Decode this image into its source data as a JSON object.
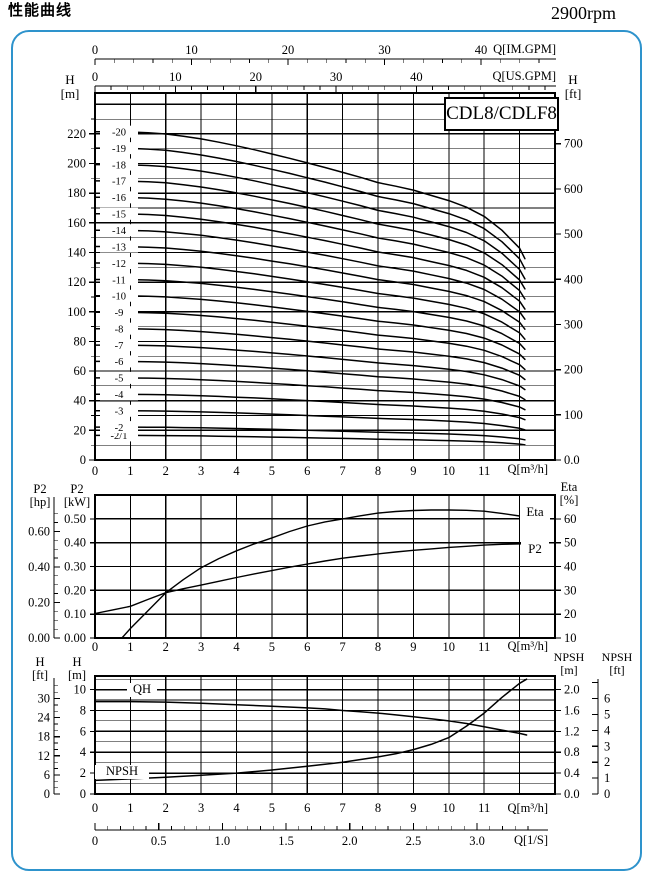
{
  "header": {
    "title": "性能曲线",
    "rpm": "2900rpm"
  },
  "frame_color": "#2e93cc",
  "chart_data": [
    {
      "id": "head-curves",
      "type": "line",
      "title": "CDL8/CDLF8",
      "xlabel": "Q[m³/h]",
      "xlim": [
        0,
        13
      ],
      "x_tick_labels": [
        "0",
        "1",
        "2",
        "3",
        "4",
        "5",
        "6",
        "7",
        "8",
        "9",
        "10",
        "11"
      ],
      "ylabel_left": "H\n[m]",
      "ylim_left": [
        0,
        247
      ],
      "y_ticks_left": [
        "0",
        "20",
        "40",
        "60",
        "80",
        "100",
        "120",
        "140",
        "160",
        "180",
        "200",
        "220"
      ],
      "grid_minor_step_m": 10,
      "ylabel_right": "H\n[ft]",
      "y_ticks_right_ft": [
        "0.0",
        "100",
        "200",
        "300",
        "400",
        "500",
        "600",
        "700"
      ],
      "top_axis_im": {
        "label": "Q[IM.GPM]",
        "ticks": [
          "0",
          "10",
          "20",
          "30",
          "40"
        ],
        "minor_step": 2,
        "m3h_per_unit": 0.27276
      },
      "top_axis_us": {
        "label": "Q[US.GPM]",
        "ticks": [
          "0",
          "10",
          "20",
          "30",
          "40"
        ],
        "minor_step": 2,
        "m3h_per_unit": 0.22712
      },
      "profile_q": [
        0,
        0.5,
        1,
        1.5,
        2,
        2.5,
        3,
        3.5,
        4,
        4.5,
        5,
        5.5,
        6,
        6.5,
        7,
        7.5,
        8,
        8.5,
        9,
        9.5,
        10,
        10.5,
        11,
        11.5,
        12,
        12.15
      ],
      "profile_f": [
        1.0,
        1.0,
        0.999,
        0.997,
        0.993,
        0.986,
        0.978,
        0.968,
        0.957,
        0.945,
        0.932,
        0.919,
        0.905,
        0.891,
        0.876,
        0.861,
        0.845,
        0.834,
        0.822,
        0.806,
        0.79,
        0.77,
        0.742,
        0.7,
        0.645,
        0.613
      ],
      "series": [
        {
          "label": "-2/1",
          "h0_m": 16.6
        },
        {
          "label": "-2",
          "h0_m": 22.2
        },
        {
          "label": "-3",
          "h0_m": 33.2
        },
        {
          "label": "-4",
          "h0_m": 44.3
        },
        {
          "label": "-5",
          "h0_m": 55.4
        },
        {
          "label": "-6",
          "h0_m": 66.5
        },
        {
          "label": "-7",
          "h0_m": 77.5
        },
        {
          "label": "-8",
          "h0_m": 88.6
        },
        {
          "label": "-9",
          "h0_m": 99.7
        },
        {
          "label": "-10",
          "h0_m": 110.8
        },
        {
          "label": "-11",
          "h0_m": 121.8
        },
        {
          "label": "-12",
          "h0_m": 132.9
        },
        {
          "label": "-13",
          "h0_m": 144.0
        },
        {
          "label": "-14",
          "h0_m": 155.0
        },
        {
          "label": "-15",
          "h0_m": 166.1
        },
        {
          "label": "-16",
          "h0_m": 177.2
        },
        {
          "label": "-17",
          "h0_m": 188.3
        },
        {
          "label": "-18",
          "h0_m": 199.3
        },
        {
          "label": "-19",
          "h0_m": 210.4
        },
        {
          "label": "-20",
          "h0_m": 221.5
        }
      ]
    },
    {
      "id": "power-efficiency",
      "type": "line",
      "xlabel": "Q[m³/h]",
      "xlim": [
        0,
        13
      ],
      "x_tick_labels": [
        "0",
        "1",
        "2",
        "3",
        "4",
        "5",
        "6",
        "7",
        "8",
        "9",
        "10",
        "11"
      ],
      "ylabel_kw": "P2\n[kW]",
      "kw_lim": [
        0,
        0.6
      ],
      "kw_ticks": [
        "0.00",
        "0.10",
        "0.20",
        "0.30",
        "0.40",
        "0.50"
      ],
      "ylabel_hp": "P2\n[hp]",
      "hp_ticks": [
        "0.00",
        "0.20",
        "0.40",
        "0.60"
      ],
      "hp_minor_step": 0.05,
      "ylabel_eta": "Eta\n[%]",
      "eta_lim": [
        10,
        70
      ],
      "eta_ticks": [
        "10",
        "20",
        "30",
        "40",
        "50",
        "60"
      ],
      "series": [
        {
          "label": "Eta",
          "scale": "eta",
          "units": "%",
          "points": [
            [
              0.76,
              10
            ],
            [
              1,
              14
            ],
            [
              1.5,
              21.5
            ],
            [
              2,
              29
            ],
            [
              2.5,
              34.5
            ],
            [
              3,
              39.5
            ],
            [
              3.5,
              43.3
            ],
            [
              4,
              46.6
            ],
            [
              4.5,
              49.5
            ],
            [
              5,
              52
            ],
            [
              5.5,
              54.7
            ],
            [
              6,
              57
            ],
            [
              6.5,
              58.7
            ],
            [
              7,
              60
            ],
            [
              7.5,
              61.3
            ],
            [
              8,
              62.4
            ],
            [
              8.5,
              63.1
            ],
            [
              9,
              63.5
            ],
            [
              9.5,
              63.7
            ],
            [
              10,
              63.7
            ],
            [
              10.5,
              63.6
            ],
            [
              11,
              63.2
            ],
            [
              11.5,
              62.3
            ],
            [
              12,
              61.2
            ],
            [
              12.2,
              60.6
            ]
          ]
        },
        {
          "label": "P2",
          "scale": "kw",
          "units": "kW",
          "points": [
            [
              0,
              0.103
            ],
            [
              0.5,
              0.118
            ],
            [
              1,
              0.133
            ],
            [
              1.5,
              0.162
            ],
            [
              2,
              0.19
            ],
            [
              2.5,
              0.207
            ],
            [
              3,
              0.222
            ],
            [
              3.5,
              0.238
            ],
            [
              4,
              0.254
            ],
            [
              4.5,
              0.269
            ],
            [
              5,
              0.283
            ],
            [
              5.5,
              0.297
            ],
            [
              6,
              0.31
            ],
            [
              6.5,
              0.323
            ],
            [
              7,
              0.335
            ],
            [
              7.5,
              0.344
            ],
            [
              8,
              0.353
            ],
            [
              8.5,
              0.361
            ],
            [
              9,
              0.368
            ],
            [
              9.5,
              0.374
            ],
            [
              10,
              0.38
            ],
            [
              10.5,
              0.385
            ],
            [
              11,
              0.39
            ],
            [
              11.5,
              0.393
            ],
            [
              12,
              0.395
            ],
            [
              12.2,
              0.396
            ]
          ]
        }
      ]
    },
    {
      "id": "qh-npsh",
      "type": "line",
      "xlabel": "Q[m³/h]",
      "xlim": [
        0,
        13
      ],
      "x_tick_labels": [
        "0",
        "1",
        "2",
        "3",
        "4",
        "5",
        "6",
        "7",
        "8",
        "9",
        "10",
        "11"
      ],
      "ylabel_m": "H\n[m]",
      "m_lim": [
        0,
        11.3
      ],
      "m_ticks": [
        "0",
        "2",
        "4",
        "6",
        "8",
        "10"
      ],
      "ylabel_ft": "H\n[ft]",
      "ft_ticks": [
        "0",
        "6",
        "12",
        "18",
        "24",
        "30"
      ],
      "ft_minor_step": 2,
      "ylabel_npsh_m": "NPSH\n[m]",
      "npsh_m_ticks": [
        "0.0",
        "0.4",
        "0.8",
        "1.2",
        "1.6",
        "2.0"
      ],
      "ylabel_npsh_ft": "NPSH\n[ft]",
      "npsh_ft_ticks": [
        "0",
        "1",
        "2",
        "3",
        "4",
        "5",
        "6"
      ],
      "bottom_axis": {
        "label": "Q[1/S]",
        "ticks": [
          "0",
          "0.5",
          "1.0",
          "1.5",
          "2.0",
          "2.5",
          "3.0"
        ],
        "minor_step": 0.1,
        "m3h_per_unit": 3.6
      },
      "series": [
        {
          "label": "QH",
          "scale": "m",
          "units": "m",
          "points": [
            [
              0,
              8.85
            ],
            [
              1,
              8.85
            ],
            [
              2,
              8.8
            ],
            [
              3,
              8.7
            ],
            [
              4,
              8.55
            ],
            [
              5,
              8.4
            ],
            [
              6,
              8.25
            ],
            [
              6.5,
              8.15
            ],
            [
              7,
              8.0
            ],
            [
              7.5,
              7.88
            ],
            [
              8,
              7.75
            ],
            [
              8.5,
              7.58
            ],
            [
              9,
              7.4
            ],
            [
              9.5,
              7.2
            ],
            [
              10,
              7.0
            ],
            [
              10.5,
              6.75
            ],
            [
              11,
              6.45
            ],
            [
              11.5,
              6.12
            ],
            [
              12,
              5.8
            ],
            [
              12.2,
              5.65
            ]
          ]
        },
        {
          "label": "NPSH",
          "scale": "npsh",
          "units": "m",
          "points": [
            [
              0,
              0.26
            ],
            [
              1,
              0.29
            ],
            [
              2,
              0.32
            ],
            [
              3,
              0.36
            ],
            [
              4,
              0.4
            ],
            [
              5,
              0.46
            ],
            [
              6,
              0.53
            ],
            [
              7,
              0.61
            ],
            [
              8,
              0.71
            ],
            [
              8.5,
              0.77
            ],
            [
              9,
              0.85
            ],
            [
              9.5,
              0.95
            ],
            [
              10,
              1.08
            ],
            [
              10.5,
              1.3
            ],
            [
              11,
              1.55
            ],
            [
              11.5,
              1.85
            ],
            [
              12,
              2.12
            ],
            [
              12.2,
              2.2
            ]
          ]
        }
      ]
    }
  ]
}
